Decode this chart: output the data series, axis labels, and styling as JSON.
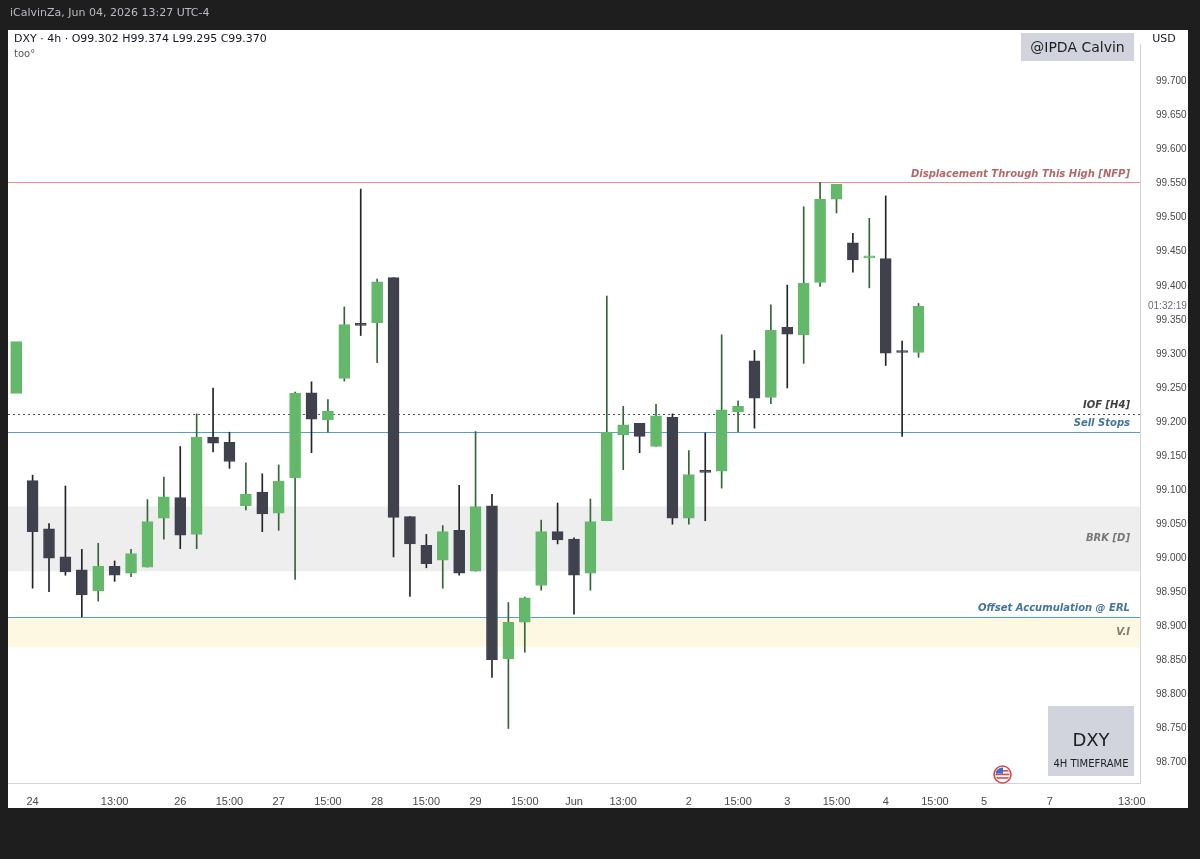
{
  "chart_data": {
    "type": "candlestick",
    "title": "DXY · 4h · O99.302 H99.374 L99.295 C99.370",
    "ylabel": "USD",
    "categories": [
      null,
      "24",
      null,
      null,
      null,
      null,
      "13:00",
      null,
      null,
      null,
      "26",
      null,
      null,
      "15:00",
      null,
      null,
      "27",
      null,
      null,
      "15:00",
      null,
      null,
      "28",
      null,
      null,
      "15:00",
      null,
      null,
      "29",
      null,
      null,
      "15:00",
      null,
      null,
      "Jun",
      null,
      null,
      "13:00",
      null,
      null,
      null,
      "2",
      null,
      null,
      "15:00",
      null,
      null,
      "3",
      null,
      null,
      "15:00",
      null,
      null,
      "4",
      null,
      null,
      "15:00",
      null,
      null,
      "5",
      null,
      null,
      null,
      "7",
      null,
      null,
      null,
      null,
      "13:00"
    ],
    "ohlc": [
      [
        99.242,
        99.318,
        99.242,
        99.318
      ],
      [
        99.114,
        99.122,
        98.956,
        99.039
      ],
      [
        99.043,
        99.051,
        98.951,
        99.0
      ],
      [
        99.002,
        99.106,
        98.975,
        98.98
      ],
      [
        98.983,
        99.013,
        98.914,
        98.946
      ],
      [
        98.952,
        99.022,
        98.937,
        98.988
      ],
      [
        98.988,
        98.996,
        98.966,
        98.975
      ],
      [
        98.978,
        99.013,
        98.973,
        99.007
      ],
      [
        98.987,
        99.086,
        98.987,
        99.054
      ],
      [
        99.059,
        99.119,
        99.028,
        99.09
      ],
      [
        99.089,
        99.164,
        99.014,
        99.034
      ],
      [
        99.035,
        99.212,
        99.014,
        99.178
      ],
      [
        99.178,
        99.25,
        99.156,
        99.169
      ],
      [
        99.17,
        99.185,
        99.132,
        99.142
      ],
      [
        99.077,
        99.14,
        99.071,
        99.094
      ],
      [
        99.097,
        99.124,
        99.039,
        99.065
      ],
      [
        99.066,
        99.137,
        99.041,
        99.113
      ],
      [
        99.118,
        99.244,
        98.969,
        99.242
      ],
      [
        99.243,
        99.259,
        99.155,
        99.204
      ],
      [
        99.203,
        99.233,
        99.185,
        99.216
      ],
      [
        99.264,
        99.369,
        99.26,
        99.343
      ],
      [
        99.343,
        99.542,
        99.327,
        99.342
      ],
      [
        99.346,
        99.41,
        99.287,
        99.406
      ],
      [
        99.412,
        99.412,
        99.002,
        99.06
      ],
      [
        99.061,
        99.061,
        98.944,
        99.021
      ],
      [
        99.019,
        99.035,
        98.986,
        98.992
      ],
      [
        98.997,
        99.048,
        98.956,
        99.039
      ],
      [
        99.041,
        99.107,
        98.975,
        98.978
      ],
      [
        98.981,
        99.186,
        98.981,
        99.076
      ],
      [
        99.077,
        99.094,
        98.825,
        98.851
      ],
      [
        98.852,
        98.935,
        98.75,
        98.906
      ],
      [
        98.906,
        98.943,
        98.862,
        98.942
      ],
      [
        98.96,
        99.056,
        98.953,
        99.039
      ],
      [
        99.039,
        99.081,
        99.021,
        99.027
      ],
      [
        99.028,
        99.03,
        98.918,
        98.975
      ],
      [
        98.978,
        99.087,
        98.953,
        99.054
      ],
      [
        99.055,
        99.385,
        99.055,
        99.185
      ],
      [
        99.181,
        99.223,
        99.13,
        99.196
      ],
      [
        99.198,
        99.198,
        99.155,
        99.179
      ],
      [
        99.164,
        99.226,
        99.164,
        99.209
      ],
      [
        99.207,
        99.212,
        99.05,
        99.059
      ],
      [
        99.059,
        99.158,
        99.05,
        99.123
      ],
      [
        99.127,
        99.184,
        99.055,
        99.126
      ],
      [
        99.128,
        99.328,
        99.103,
        99.218
      ],
      [
        99.215,
        99.231,
        99.186,
        99.223
      ],
      [
        99.29,
        99.305,
        99.191,
        99.235
      ],
      [
        99.236,
        99.372,
        99.227,
        99.335
      ],
      [
        99.339,
        99.401,
        99.25,
        99.329
      ],
      [
        99.328,
        99.516,
        99.286,
        99.404
      ],
      [
        99.405,
        99.552,
        99.399,
        99.527
      ],
      [
        99.527,
        99.549,
        99.507,
        99.549
      ],
      [
        99.463,
        99.477,
        99.42,
        99.438
      ],
      [
        99.441,
        99.499,
        99.397,
        99.442
      ],
      [
        99.44,
        99.532,
        99.283,
        99.301
      ],
      [
        99.303,
        99.319,
        99.179,
        99.302
      ],
      [
        99.302,
        99.374,
        99.295,
        99.37
      ],
      null,
      null,
      null,
      null,
      null,
      null,
      null,
      null,
      null,
      null,
      null,
      null,
      null
    ],
    "colors": [
      "#63b86a",
      "#3f414c",
      "#3f414c",
      "#3f414c",
      "#3f414c",
      "#63b86a",
      "#3f414c",
      "#63b86a",
      "#63b86a",
      "#63b86a",
      "#3f414c",
      "#63b86a",
      "#3f414c",
      "#3f414c",
      "#63b86a",
      "#3f414c",
      "#63b86a",
      "#63b86a",
      "#3f414c",
      "#63b86a",
      "#63b86a",
      "#3f414c",
      "#63b86a",
      "#3f414c",
      "#3f414c",
      "#3f414c",
      "#63b86a",
      "#3f414c",
      "#63b86a",
      "#3f414c",
      "#63b86a",
      "#63b86a",
      "#63b86a",
      "#3f414c",
      "#3f414c",
      "#63b86a",
      "#63b86a",
      "#63b86a",
      "#3f414c",
      "#63b86a",
      "#3f414c",
      "#63b86a",
      "#3f414c",
      "#63b86a",
      "#63b86a",
      "#3f414c",
      "#63b86a",
      "#3f414c",
      "#63b86a",
      "#63b86a",
      "#63b86a",
      "#3f414c",
      "#63b86a",
      "#3f414c",
      "#3f414c",
      "#63b86a",
      null,
      null,
      null,
      null,
      null,
      null,
      null,
      null,
      null,
      null,
      null,
      null,
      null
    ],
    "ylim": [
      98.67,
      99.755
    ],
    "yticks": [
      {
        "value": 98.7,
        "label": "98.700"
      },
      {
        "value": 98.75,
        "label": "98.750"
      },
      {
        "value": 98.8,
        "label": "98.800"
      },
      {
        "value": 98.85,
        "label": "98.850"
      },
      {
        "value": 98.9,
        "label": "98.900"
      },
      {
        "value": 98.95,
        "label": "98.950"
      },
      {
        "value": 99.0,
        "label": "99.000"
      },
      {
        "value": 99.05,
        "label": "99.050"
      },
      {
        "value": 99.1,
        "label": "99.100"
      },
      {
        "value": 99.15,
        "label": "99.150"
      },
      {
        "value": 99.2,
        "label": "99.200"
      },
      {
        "value": 99.25,
        "label": "99.250"
      },
      {
        "value": 99.3,
        "label": "99.300"
      },
      {
        "value": 99.35,
        "label": "99.350"
      },
      {
        "value": 99.4,
        "label": "99.400"
      },
      {
        "value": 99.45,
        "label": "99.450"
      },
      {
        "value": 99.5,
        "label": "99.500"
      },
      {
        "value": 99.55,
        "label": "99.550"
      },
      {
        "value": 99.6,
        "label": "99.600"
      },
      {
        "value": 99.65,
        "label": "99.650"
      },
      {
        "value": 99.7,
        "label": "99.700"
      }
    ],
    "ref_lines": [
      {
        "axis": "y",
        "value": 99.552,
        "label": "Displacement Through This High [NFP]",
        "color": "#f08a8a"
      },
      {
        "axis": "y",
        "value": 99.212,
        "label": "IOF [H4]",
        "color": "#555555",
        "line_style": "dotted"
      },
      {
        "axis": "y",
        "value": 99.186,
        "label": "Sell Stops",
        "color": "#5b9bd5"
      },
      {
        "axis": "y",
        "value": 98.914,
        "label": "Offset Accumulation @ ERL",
        "color": "#5b9bd5"
      }
    ],
    "bands": [
      {
        "axis": "y",
        "from": 98.981,
        "to": 99.076,
        "label": "BRK [D]",
        "color": "#eeeeee"
      },
      {
        "axis": "y",
        "from": 98.869,
        "to": 98.914,
        "label": "V.I",
        "color": "#fdf8e1"
      }
    ],
    "annotations": [
      "iCalvinZa, Jun 04, 2026 13:27 UTC-4",
      "too°",
      "@IPDA Calvin",
      "DXY",
      "4H TIMEFRAME",
      "01:32:19"
    ]
  }
}
